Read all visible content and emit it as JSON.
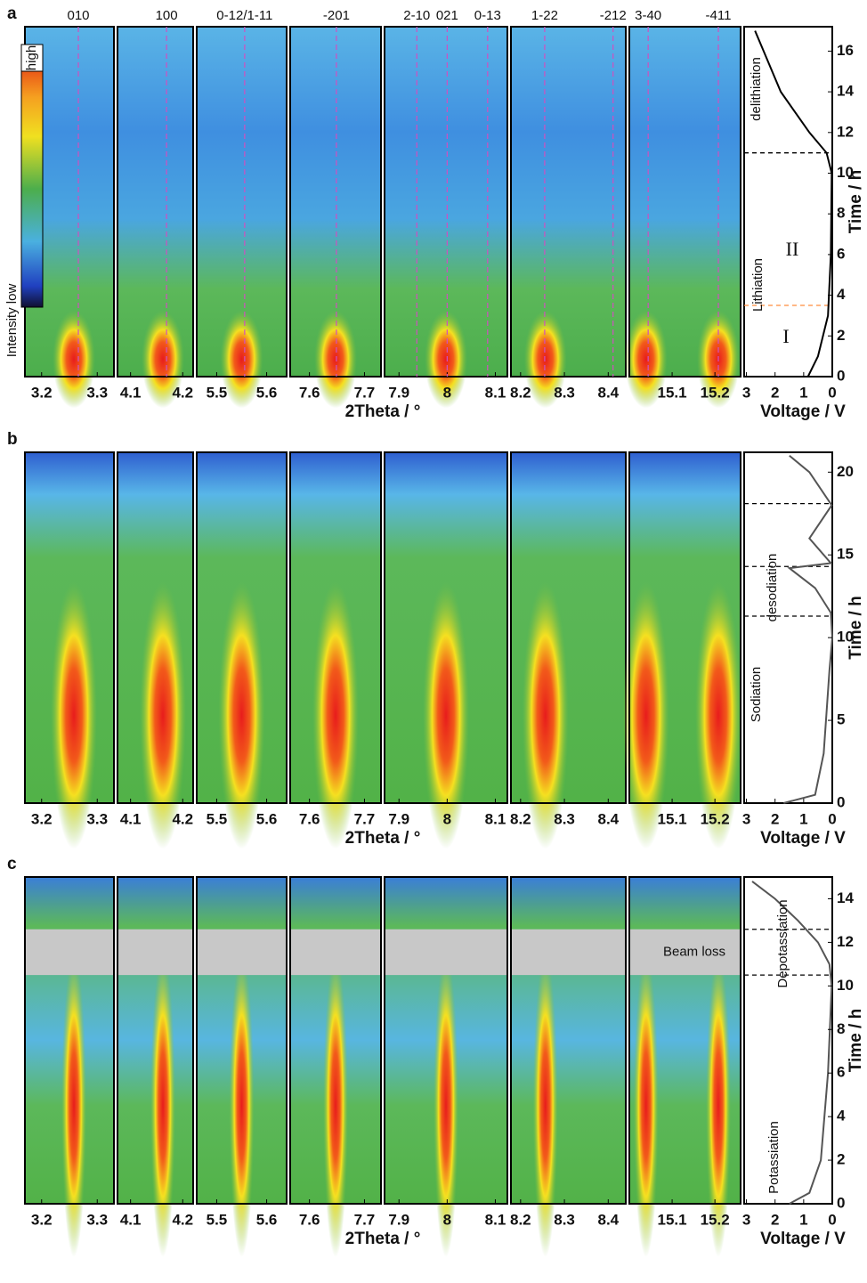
{
  "chart_data": [
    {
      "type": "contour",
      "letter": "a",
      "x_label": "2Theta / °",
      "ylim": [
        0,
        17.2
      ],
      "colorbar_labels": [
        "high",
        "Intensity low"
      ],
      "panels": [
        {
          "xlim": [
            3.17,
            3.33
          ],
          "xticks": [
            3.2,
            3.3
          ],
          "peaks": [
            {
              "label": "010",
              "x": 3.266
            }
          ]
        },
        {
          "xlim": [
            4.075,
            4.22
          ],
          "xticks": [
            4.1,
            4.2
          ],
          "peaks": [
            {
              "label": "100",
              "x": 4.169
            }
          ]
        },
        {
          "xlim": [
            5.46,
            5.64
          ],
          "xticks": [
            5.5,
            5.6
          ],
          "peaks": [
            {
              "label": "0-12/1-11",
              "x": 5.556
            }
          ]
        },
        {
          "xlim": [
            7.565,
            7.73
          ],
          "xticks": [
            7.6,
            7.7
          ],
          "peaks": [
            {
              "label": "-201",
              "x": 7.649
            }
          ]
        },
        {
          "xlim": [
            7.87,
            8.125
          ],
          "xticks": [
            7.9,
            8,
            8.1
          ],
          "peaks": [
            {
              "label": "2-10",
              "x": 7.937
            },
            {
              "label": "021",
              "x": 8.0
            },
            {
              "label": "0-13",
              "x": 8.084
            }
          ]
        },
        {
          "xlim": [
            8.178,
            8.44
          ],
          "xticks": [
            8.2,
            8.3,
            8.4
          ],
          "peaks": [
            {
              "label": "1-22",
              "x": 8.255
            },
            {
              "label": "-212",
              "x": 8.411
            }
          ]
        },
        {
          "xlim": [
            15.0,
            15.26
          ],
          "xticks": [
            15.1,
            15.2
          ],
          "peaks": [
            {
              "label": "3-40",
              "x": 15.044
            },
            {
              "label": "-411",
              "x": 15.208
            }
          ]
        }
      ]
    },
    {
      "type": "line",
      "x_label": "Voltage / V",
      "y_label": "Time / h",
      "color": "#000000",
      "xlim": [
        3.08,
        0
      ],
      "xticks": [
        3,
        2,
        1,
        0
      ],
      "ylim": [
        0,
        17.2
      ],
      "yticks": [
        0,
        2,
        4,
        6,
        8,
        10,
        12,
        14,
        16
      ],
      "x": [
        0.85,
        0.5,
        0.15,
        0.05,
        0.02,
        0.2,
        0.8,
        1.8,
        2.4,
        2.7
      ],
      "values": [
        0,
        1,
        3,
        6,
        10,
        11,
        12,
        14,
        16,
        17
      ],
      "hlines": [
        11,
        3.5
      ],
      "hline_colors": [
        "#000000",
        "#ff8c3c"
      ],
      "annotations": [
        "delithiation",
        "Lithiation",
        "II",
        "I"
      ]
    },
    {
      "type": "contour",
      "letter": "b",
      "x_label": "2Theta / °",
      "ylim": [
        0,
        21.2
      ],
      "panels": [
        {
          "xlim": [
            3.17,
            3.33
          ],
          "xticks": [
            3.2,
            3.3
          ]
        },
        {
          "xlim": [
            4.075,
            4.22
          ],
          "xticks": [
            4.1,
            4.2
          ]
        },
        {
          "xlim": [
            5.46,
            5.64
          ],
          "xticks": [
            5.5,
            5.6
          ]
        },
        {
          "xlim": [
            7.565,
            7.73
          ],
          "xticks": [
            7.6,
            7.7
          ]
        },
        {
          "xlim": [
            7.87,
            8.125
          ],
          "xticks": [
            7.9,
            8,
            8.1
          ]
        },
        {
          "xlim": [
            8.178,
            8.44
          ],
          "xticks": [
            8.2,
            8.3,
            8.4
          ]
        },
        {
          "xlim": [
            15.0,
            15.26
          ],
          "xticks": [
            15.1,
            15.2
          ]
        }
      ]
    },
    {
      "type": "line",
      "x_label": "Voltage / V",
      "y_label": "Time / h",
      "color": "#555555",
      "xlim": [
        3.08,
        0
      ],
      "xticks": [
        3,
        2,
        1,
        0
      ],
      "ylim": [
        0,
        21.2
      ],
      "yticks": [
        0,
        5,
        10,
        15,
        20
      ],
      "x": [
        1.7,
        0.6,
        0.3,
        0.1,
        0.0,
        0.05,
        0.6,
        1.5,
        0.05,
        0.8,
        0.02,
        0.8,
        1.5
      ],
      "values": [
        0,
        0.5,
        3,
        8,
        10,
        11.5,
        13,
        14.2,
        14.5,
        16,
        18,
        20,
        21
      ],
      "hlines": [
        18.1,
        14.3,
        11.3
      ],
      "hline_colors": [
        "#000000",
        "#000000",
        "#000000"
      ],
      "annotations": [
        "desodiation",
        "Sodiation"
      ]
    },
    {
      "type": "contour",
      "letter": "c",
      "x_label": "2Theta / °",
      "ylim": [
        0,
        15
      ],
      "beam_loss": {
        "label": "Beam loss",
        "range": [
          10.5,
          12.6
        ]
      },
      "panels": [
        {
          "xlim": [
            3.17,
            3.33
          ],
          "xticks": [
            3.2,
            3.3
          ]
        },
        {
          "xlim": [
            4.075,
            4.22
          ],
          "xticks": [
            4.1,
            4.2
          ]
        },
        {
          "xlim": [
            5.46,
            5.64
          ],
          "xticks": [
            5.5,
            5.6
          ]
        },
        {
          "xlim": [
            7.565,
            7.73
          ],
          "xticks": [
            7.6,
            7.7
          ]
        },
        {
          "xlim": [
            7.87,
            8.125
          ],
          "xticks": [
            7.9,
            8,
            8.1
          ]
        },
        {
          "xlim": [
            8.178,
            8.44
          ],
          "xticks": [
            8.2,
            8.3,
            8.4
          ]
        },
        {
          "xlim": [
            15.0,
            15.26
          ],
          "xticks": [
            15.1,
            15.2
          ]
        }
      ]
    },
    {
      "type": "line",
      "x_label": "Voltage / V",
      "y_label": "Time / h",
      "color": "#555555",
      "xlim": [
        3.08,
        0
      ],
      "xticks": [
        3,
        2,
        1,
        0
      ],
      "ylim": [
        0,
        15
      ],
      "yticks": [
        0,
        2,
        4,
        6,
        8,
        10,
        12,
        14
      ],
      "x": [
        1.5,
        0.8,
        0.4,
        0.15,
        0.02,
        0.1,
        0.5,
        1.2,
        2.0,
        2.8
      ],
      "values": [
        0,
        0.5,
        2,
        6,
        10,
        11,
        12,
        13,
        14,
        14.8
      ],
      "hlines": [
        12.6,
        10.5
      ],
      "hline_colors": [
        "#000000",
        "#000000"
      ],
      "annotations": [
        "Depotassiation",
        "Potassiation"
      ]
    }
  ]
}
